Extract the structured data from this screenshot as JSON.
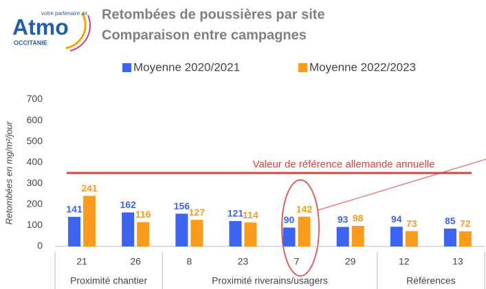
{
  "logo": {
    "name": "Atmo",
    "tagline": "votre partenaire air",
    "region": "OCCITANIE"
  },
  "chart_data": {
    "type": "bar",
    "title": "Retombées de poussières par site",
    "subtitle": "Comparaison entre campagnes",
    "y_label": "Retombées en mg/m²/jour",
    "categories": [
      "21",
      "26",
      "8",
      "23",
      "7",
      "29",
      "12",
      "13"
    ],
    "groups": [
      {
        "label": "Proximité chantier",
        "span": 2
      },
      {
        "label": "Proximité riverains/usagers",
        "span": 4
      },
      {
        "label": "Références",
        "span": 2
      }
    ],
    "series": [
      {
        "name": "Moyenne 2020/2021",
        "color": "#3d63f2",
        "values": [
          141,
          162,
          156,
          121,
          90,
          93,
          94,
          85
        ]
      },
      {
        "name": "Moyenne 2022/2023",
        "color": "#fb9c1c",
        "values": [
          241,
          116,
          127,
          114,
          142,
          98,
          73,
          72
        ]
      }
    ],
    "reference": {
      "label": "Valeur de référence allemande annuelle",
      "value": 350,
      "color": "#e2403f"
    },
    "ylim": [
      0,
      700
    ],
    "yticks": [
      0,
      100,
      200,
      300,
      400,
      500,
      600,
      700
    ],
    "grid": false
  }
}
